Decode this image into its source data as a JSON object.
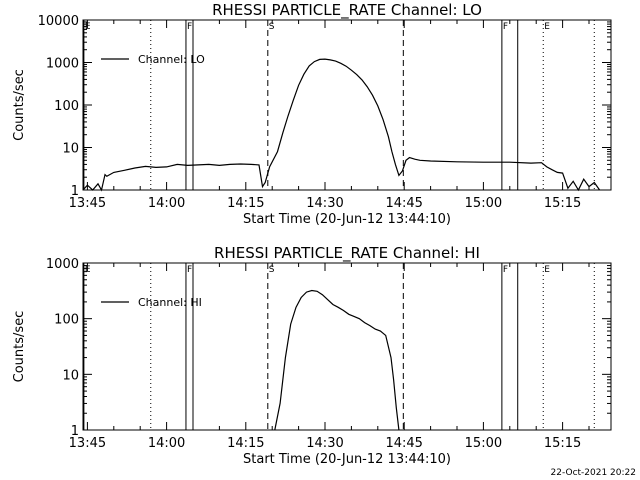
{
  "chart_data": [
    {
      "type": "line",
      "title": "RHESSI PARTICLE_RATE Channel: LO",
      "xlabel": "Start Time (20-Jun-12 13:44:10)",
      "ylabel": "Counts/sec",
      "y_scale": "log",
      "ylim": [
        1,
        10000
      ],
      "y_ticks": [
        1,
        10,
        100,
        1000,
        10000
      ],
      "y_tick_labels": [
        "1",
        "10",
        "100",
        "1000",
        "10000"
      ],
      "xlim": [
        "13:44:10",
        "15:24:10"
      ],
      "x_ticks": [
        "13:45",
        "14:00",
        "14:15",
        "14:30",
        "14:45",
        "15:00",
        "15:15"
      ],
      "legend": "Channel: LO",
      "legend_position": "top-left",
      "grid": false,
      "markers": [
        {
          "time": "13:44:20",
          "label": "E",
          "style": "solid"
        },
        {
          "time": "13:57:00",
          "label": "",
          "style": "dotted"
        },
        {
          "time": "14:03:40",
          "label": "F",
          "style": "solid"
        },
        {
          "time": "14:05:00",
          "label": "",
          "style": "solid"
        },
        {
          "time": "14:19:10",
          "label": "S",
          "style": "dashed"
        },
        {
          "time": "14:44:50",
          "label": "",
          "style": "dashed"
        },
        {
          "time": "15:03:30",
          "label": "F",
          "style": "solid"
        },
        {
          "time": "15:06:30",
          "label": "",
          "style": "solid"
        },
        {
          "time": "15:11:20",
          "label": "E",
          "style": "dotted"
        },
        {
          "time": "15:21:00",
          "label": "",
          "style": "dotted"
        }
      ],
      "series": [
        {
          "name": "Channel: LO",
          "x": [
            "13:44:10",
            "13:45:00",
            "13:46:00",
            "13:47:00",
            "13:47:40",
            "13:48:20",
            "13:48:40",
            "13:50:00",
            "13:52:00",
            "13:54:00",
            "13:56:00",
            "13:58:00",
            "14:00:00",
            "14:02:00",
            "14:04:00",
            "14:06:00",
            "14:08:00",
            "14:10:00",
            "14:12:00",
            "14:14:00",
            "14:16:00",
            "14:17:30",
            "14:18:10",
            "14:18:40",
            "14:19:30",
            "14:21:00",
            "14:22:00",
            "14:23:00",
            "14:24:00",
            "14:25:00",
            "14:26:00",
            "14:27:00",
            "14:28:00",
            "14:29:00",
            "14:30:00",
            "14:31:00",
            "14:32:00",
            "14:33:00",
            "14:34:00",
            "14:35:00",
            "14:36:00",
            "14:37:00",
            "14:38:00",
            "14:39:00",
            "14:40:00",
            "14:41:00",
            "14:42:00",
            "14:42:40",
            "14:43:20",
            "14:44:00",
            "14:44:40",
            "14:45:20",
            "14:46:00",
            "14:47:00",
            "14:48:00",
            "14:50:00",
            "14:55:00",
            "15:00:00",
            "15:05:00",
            "15:09:00",
            "15:11:00",
            "15:12:00",
            "15:13:00",
            "15:14:00",
            "15:15:00",
            "15:16:00",
            "15:17:00",
            "15:18:00",
            "15:19:00",
            "15:20:00",
            "15:21:00",
            "15:22:00"
          ],
          "y": [
            1,
            1.3,
            1,
            1.4,
            1,
            2.3,
            2.1,
            2.6,
            2.9,
            3.3,
            3.6,
            3.4,
            3.5,
            4,
            3.8,
            3.9,
            4,
            3.8,
            4,
            4.1,
            4,
            3.9,
            1.2,
            1.5,
            3.5,
            8,
            22,
            55,
            130,
            290,
            530,
            830,
            1050,
            1180,
            1200,
            1150,
            1080,
            960,
            820,
            660,
            520,
            390,
            270,
            170,
            95,
            45,
            18,
            8,
            4,
            2.2,
            2.8,
            5,
            5.8,
            5.3,
            5,
            4.8,
            4.6,
            4.5,
            4.5,
            4.3,
            4.4,
            3.5,
            3,
            2.6,
            2.5,
            1.1,
            1.6,
            1,
            1.8,
            1.2,
            1.5,
            1
          ]
        }
      ]
    },
    {
      "type": "line",
      "title": "RHESSI PARTICLE_RATE Channel: HI",
      "xlabel": "Start Time (20-Jun-12 13:44:10)",
      "ylabel": "Counts/sec",
      "y_scale": "log",
      "ylim": [
        1,
        1000
      ],
      "y_ticks": [
        1,
        10,
        100,
        1000
      ],
      "y_tick_labels": [
        "1",
        "10",
        "100",
        "1000"
      ],
      "xlim": [
        "13:44:10",
        "15:24:10"
      ],
      "x_ticks": [
        "13:45",
        "14:00",
        "14:15",
        "14:30",
        "14:45",
        "15:00",
        "15:15"
      ],
      "legend": "Channel: HI",
      "legend_position": "top-left",
      "grid": false,
      "markers": [
        {
          "time": "13:44:20",
          "label": "E",
          "style": "solid"
        },
        {
          "time": "13:57:00",
          "label": "",
          "style": "dotted"
        },
        {
          "time": "14:03:40",
          "label": "F",
          "style": "solid"
        },
        {
          "time": "14:05:00",
          "label": "",
          "style": "solid"
        },
        {
          "time": "14:19:10",
          "label": "S",
          "style": "dashed"
        },
        {
          "time": "14:44:50",
          "label": "",
          "style": "dashed"
        },
        {
          "time": "15:03:30",
          "label": "F",
          "style": "solid"
        },
        {
          "time": "15:06:30",
          "label": "",
          "style": "solid"
        },
        {
          "time": "15:11:20",
          "label": "E",
          "style": "dotted"
        },
        {
          "time": "15:21:00",
          "label": "",
          "style": "dotted"
        }
      ],
      "series": [
        {
          "name": "Channel: HI",
          "x": [
            "14:20:30",
            "14:21:30",
            "14:22:30",
            "14:23:30",
            "14:24:30",
            "14:25:30",
            "14:26:30",
            "14:27:30",
            "14:28:30",
            "14:29:30",
            "14:30:30",
            "14:31:30",
            "14:32:30",
            "14:33:30",
            "14:34:30",
            "14:35:30",
            "14:36:30",
            "14:37:30",
            "14:38:30",
            "14:39:30",
            "14:40:30",
            "14:41:30",
            "14:42:30",
            "14:43:00",
            "14:43:30",
            "14:44:00"
          ],
          "y": [
            1,
            3,
            20,
            80,
            160,
            240,
            300,
            320,
            310,
            270,
            220,
            180,
            160,
            140,
            120,
            110,
            100,
            85,
            75,
            65,
            60,
            50,
            20,
            8,
            2.5,
            1
          ]
        }
      ]
    }
  ],
  "footer": {
    "date": "22-Oct-2021 20:22"
  }
}
